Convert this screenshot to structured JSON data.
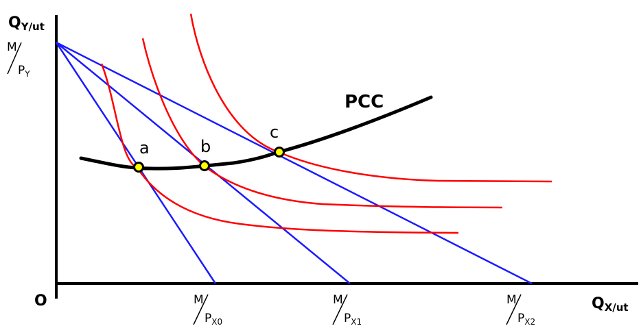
{
  "axes": {
    "y_label_main": "Q",
    "y_label_sub": "Y/ut",
    "x_label_main": "Q",
    "x_label_sub": "X/ut",
    "origin_label": "O"
  },
  "y_intercept": {
    "num": "M",
    "den": "P",
    "den_sub": "Y"
  },
  "x_intercepts": [
    {
      "num": "M",
      "den": "P",
      "den_sub": "X0"
    },
    {
      "num": "M",
      "den": "P",
      "den_sub": "X1"
    },
    {
      "num": "M",
      "den": "P",
      "den_sub": "X2"
    }
  ],
  "curve_label": "PCC",
  "points": [
    "a",
    "b",
    "c"
  ],
  "colors": {
    "budget_line": "#1a1aff",
    "indifference_curve": "#ff0000",
    "pcc": "#000000",
    "point_fill": "#ffff00"
  }
}
